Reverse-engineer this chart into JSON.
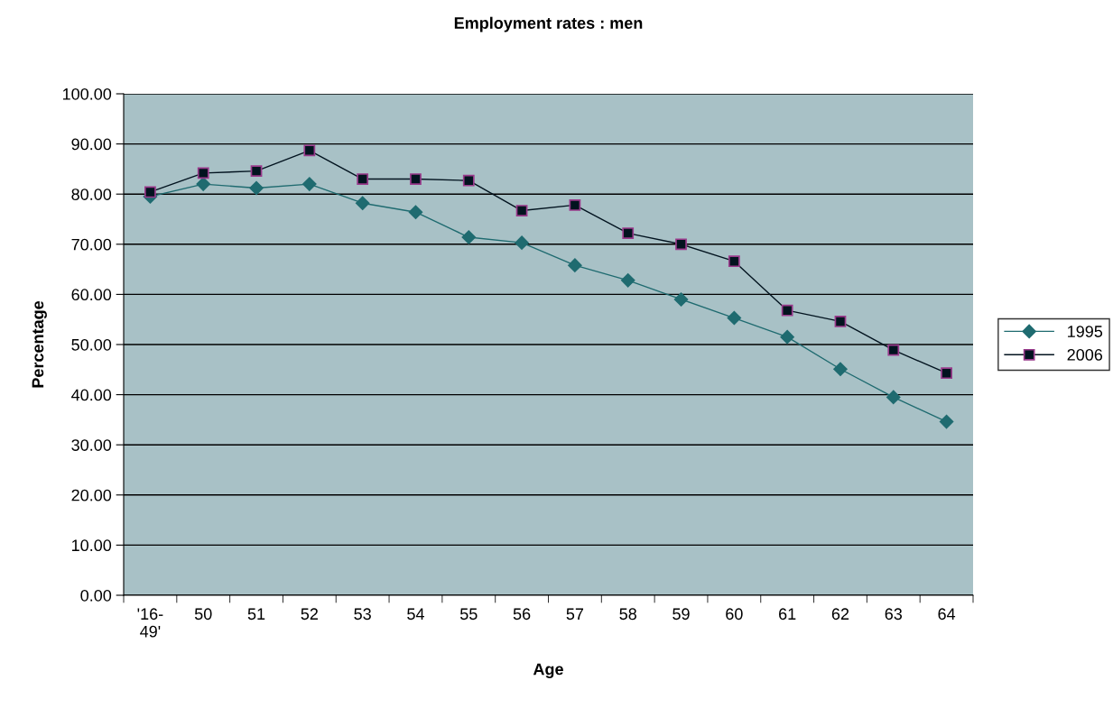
{
  "chart_data": {
    "type": "line",
    "title": "Employment rates : men",
    "xlabel": "Age",
    "ylabel": "Percentage",
    "categories": [
      "'16-\n49'",
      "50",
      "51",
      "52",
      "53",
      "54",
      "55",
      "56",
      "57",
      "58",
      "59",
      "60",
      "61",
      "62",
      "63",
      "64"
    ],
    "series": [
      {
        "name": "1995",
        "color": "#1f6b70",
        "marker": "diamond",
        "values": [
          79.5,
          82,
          81.2,
          82,
          78.2,
          76.4,
          71.4,
          70.3,
          65.8,
          62.8,
          59,
          55.3,
          51.5,
          45.1,
          39.5,
          34.6
        ]
      },
      {
        "name": "2006",
        "color": "#02131f",
        "marker": "square",
        "values": [
          80.4,
          84.2,
          84.6,
          88.7,
          83,
          83,
          82.7,
          76.7,
          77.8,
          72.2,
          70,
          66.6,
          56.8,
          54.6,
          48.9,
          44.3
        ]
      }
    ],
    "ylim": [
      0,
      100
    ],
    "yticks": [
      {
        "value": 0,
        "label": "0.00"
      },
      {
        "value": 10,
        "label": "10.00"
      },
      {
        "value": 20,
        "label": "20.00"
      },
      {
        "value": 30,
        "label": "30.00"
      },
      {
        "value": 40,
        "label": "40.00"
      },
      {
        "value": 50,
        "label": "50.00"
      },
      {
        "value": 60,
        "label": "60.00"
      },
      {
        "value": 70,
        "label": "70.00"
      },
      {
        "value": 80,
        "label": "80.00"
      },
      {
        "value": 90,
        "label": "90.00"
      },
      {
        "value": 100,
        "label": "100.00"
      }
    ],
    "grid": "y",
    "legend": "right"
  }
}
